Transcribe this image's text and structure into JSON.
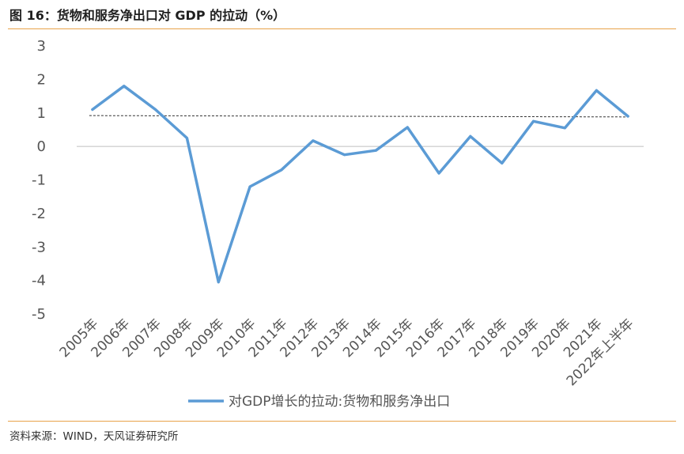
{
  "figure": {
    "title": "图 16：货物和服务净出口对 GDP 的拉动（%）",
    "source": "资料来源：WIND，天风证券研究所"
  },
  "colors": {
    "series": "#5b9bd5",
    "accent_rule": "#e8a24a",
    "reference_line": "#333333",
    "zero_axis": "#bfbfbf"
  },
  "chart_data": {
    "type": "line",
    "categories": [
      "2005年",
      "2006年",
      "2007年",
      "2008年",
      "2009年",
      "2010年",
      "2011年",
      "2012年",
      "2013年",
      "2014年",
      "2015年",
      "2016年",
      "2017年",
      "2018年",
      "2019年",
      "2020年",
      "2021年",
      "2022年上半年"
    ],
    "series": [
      {
        "name": "对GDP增长的拉动:货物和服务净出口",
        "values": [
          1.1,
          1.8,
          1.1,
          0.25,
          -4.05,
          -1.2,
          -0.7,
          0.17,
          -0.25,
          -0.12,
          0.57,
          -0.8,
          0.3,
          -0.5,
          0.75,
          0.55,
          1.67,
          0.9
        ]
      }
    ],
    "reference_line": {
      "style": "dashed",
      "from": 0.92,
      "to": 0.88
    },
    "ylim": [
      -5,
      3
    ],
    "yticks": [
      "3",
      "2",
      "1",
      "0",
      "-1",
      "-2",
      "-3",
      "-4",
      "-5"
    ],
    "ytick_values": [
      3,
      2,
      1,
      0,
      -1,
      -2,
      -3,
      -4,
      -5
    ],
    "legend_position": "bottom-center",
    "grid": false,
    "xlabel": "",
    "ylabel": ""
  }
}
